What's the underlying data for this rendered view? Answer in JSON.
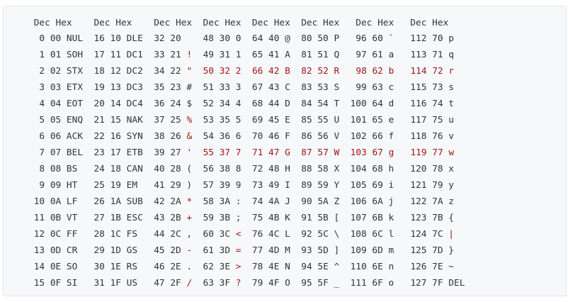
{
  "header": " Dec Hex    Dec Hex    Dec Hex  Dec Hex  Dec Hex  Dec Hex   Dec Hex   Dec Hex",
  "rows": [
    [
      {
        "t": "  0 00 NUL  16 10 DLE  32 20    48 30 0  64 40 @  80 50 P   96 60 `   112 70 p",
        "h": false
      }
    ],
    [
      {
        "t": "  1 01 SOH  17 11 DC1  33 21 ",
        "h": false
      },
      {
        "t": "!",
        "h": true
      },
      {
        "t": "  49 31 1  65 41 A  81 51 Q   97 61 a   113 71 q",
        "h": false
      }
    ],
    [
      {
        "t": "  2 02 STX  18 12 DC2  34 22 ",
        "h": false
      },
      {
        "t": "\"",
        "h": true
      },
      {
        "t": "  ",
        "h": false
      },
      {
        "t": "50 32 2",
        "h": true
      },
      {
        "t": "  ",
        "h": false
      },
      {
        "t": "66 42 B",
        "h": true
      },
      {
        "t": "  ",
        "h": false
      },
      {
        "t": "82 52 R",
        "h": true
      },
      {
        "t": "   ",
        "h": false
      },
      {
        "t": "98 62 b",
        "h": true
      },
      {
        "t": "   ",
        "h": false
      },
      {
        "t": "114 72 r",
        "h": true
      }
    ],
    [
      {
        "t": "  3 03 ETX  19 13 DC3  35 23 #  51 33 3  67 43 C  83 53 S   99 63 c   115 73 s",
        "h": false
      }
    ],
    [
      {
        "t": "  4 04 EOT  20 14 DC4  36 24 $  52 34 4  68 44 D  84 54 T  100 64 d   116 74 t",
        "h": false
      }
    ],
    [
      {
        "t": "  5 05 ENQ  21 15 NAK  37 25 ",
        "h": false
      },
      {
        "t": "%",
        "h": true
      },
      {
        "t": "  53 35 5  69 45 E  85 55 U  101 65 e   117 75 u",
        "h": false
      }
    ],
    [
      {
        "t": "  6 06 ACK  22 16 SYN  38 26 ",
        "h": false
      },
      {
        "t": "&",
        "h": true
      },
      {
        "t": "  54 36 6  70 46 F  86 56 V  102 66 f   118 76 v",
        "h": false
      }
    ],
    [
      {
        "t": "  7 07 BEL  23 17 ETB  39 27 ",
        "h": false
      },
      {
        "t": "'",
        "h": true
      },
      {
        "t": "  ",
        "h": false
      },
      {
        "t": "55 37 7",
        "h": true
      },
      {
        "t": "  ",
        "h": false
      },
      {
        "t": "71 47 G",
        "h": true
      },
      {
        "t": "  ",
        "h": false
      },
      {
        "t": "87 57 W",
        "h": true
      },
      {
        "t": "  ",
        "h": false
      },
      {
        "t": "103 67 g",
        "h": true
      },
      {
        "t": "   ",
        "h": false
      },
      {
        "t": "119 77 w",
        "h": true
      }
    ],
    [
      {
        "t": "  8 08 BS   24 18 CAN  40 28 (  56 38 8  72 48 H  88 58 X  104 68 h   120 78 x",
        "h": false
      }
    ],
    [
      {
        "t": "  9 09 HT   25 19 EM   41 29 )  57 39 9  73 49 I  89 59 Y  105 69 i   121 79 y",
        "h": false
      }
    ],
    [
      {
        "t": " 10 0A LF   26 1A SUB  42 2A ",
        "h": false
      },
      {
        "t": "*",
        "h": true
      },
      {
        "t": "  58 3A :  74 4A J  90 5A Z  106 6A j   122 7A z",
        "h": false
      }
    ],
    [
      {
        "t": " 11 0B VT   27 1B ESC  43 2B ",
        "h": false
      },
      {
        "t": "+",
        "h": true
      },
      {
        "t": "  59 3B ;  75 4B K  91 5B [  107 6B k   123 7B {",
        "h": false
      }
    ],
    [
      {
        "t": " 12 0C FF   28 1C FS   44 2C ,  60 3C ",
        "h": false
      },
      {
        "t": "<",
        "h": true
      },
      {
        "t": "  76 4C L  92 5C \\  108 6C l   124 7C ",
        "h": false
      },
      {
        "t": "|",
        "h": true
      }
    ],
    [
      {
        "t": " 13 0D CR   29 1D GS   45 2D ",
        "h": false
      },
      {
        "t": "-",
        "h": true
      },
      {
        "t": "  61 3D ",
        "h": false
      },
      {
        "t": "=",
        "h": true
      },
      {
        "t": "  77 4D M  93 5D ]  109 6D m   125 7D }",
        "h": false
      }
    ],
    [
      {
        "t": " 14 0E SO   30 1E RS   46 2E .  62 3E ",
        "h": false
      },
      {
        "t": ">",
        "h": true
      },
      {
        "t": "  78 4E N  94 5E ^  110 6E n   126 7E ~",
        "h": false
      }
    ],
    [
      {
        "t": " 15 0F SI   31 1F US   47 2F ",
        "h": false
      },
      {
        "t": "/",
        "h": true
      },
      {
        "t": "  63 3F ",
        "h": false
      },
      {
        "t": "?",
        "h": true
      },
      {
        "t": "  79 4F O  95 5F _  111 6F o   127 7F DEL",
        "h": false
      }
    ]
  ],
  "colors": {
    "background": "#f6f8fa",
    "border": "#e4e7ea",
    "text": "#333333",
    "highlight": "#a31515"
  }
}
